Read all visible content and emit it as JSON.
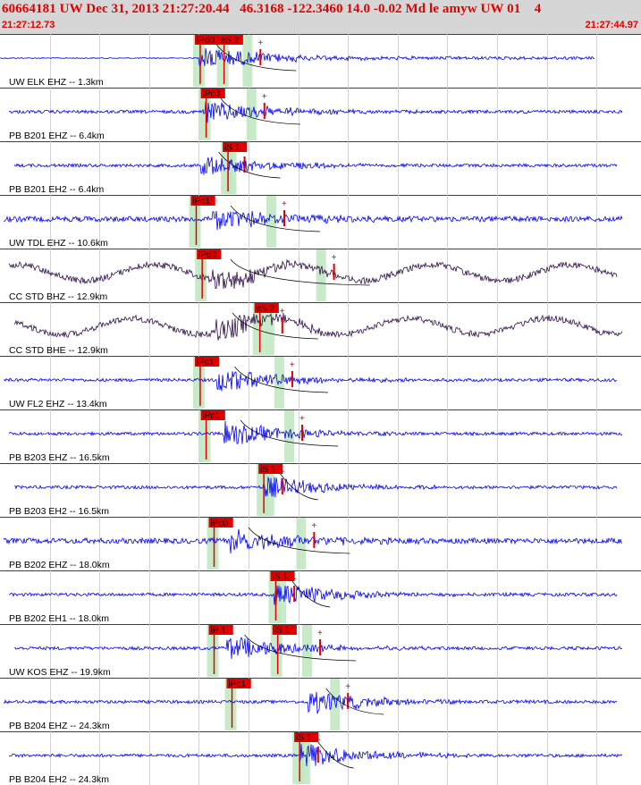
{
  "header": {
    "title": "60664181 UW Dec 31, 2013 21:27:20.44   46.3168 -122.3460 14.0 -0.02 Md le amyw UW 01    4",
    "start_time": "21:27:12.73",
    "end_time": "21:27:44.97"
  },
  "colors": {
    "trace_blue": "#0000ee",
    "trace_dark": "#30104a",
    "pick_red": "#e00000",
    "window_green": "#bfe6bf",
    "header_gray": "#d6d6d6",
    "grid_gray": "#c8c8c8"
  },
  "chart_data": {
    "type": "line",
    "title": "60664181 UW Dec 31, 2013 21:27:20.44   46.3168 -122.3460 14.0 -0.02 Md le amyw UW 01    4",
    "xlabel": "",
    "ylabel": "",
    "time_range": [
      "21:27:12.73",
      "21:27:44.97"
    ],
    "x_unit": "seconds after 21:27:12.73",
    "xlim": [
      0,
      32.24
    ],
    "grid": "vertical lines",
    "channels": [
      {
        "label": "UW ELK EHZ -- 1.3km",
        "color": "blue",
        "amplitude": 1.0,
        "picks": [
          {
            "label": "iPd0",
            "t": 9.8
          },
          {
            "label": "eS 2",
            "t": 11.0
          }
        ],
        "event_onset": 10.0,
        "coda_peak": 13.1
      },
      {
        "label": "PB B201 EHZ -- 6.4km",
        "color": "blue",
        "amplitude": 1.0,
        "picks": [
          {
            "label": "iPc0",
            "t": 10.1
          }
        ],
        "event_onset": 10.2,
        "coda_peak": 13.3
      },
      {
        "label": "PB B201 EH2 -- 6.4km",
        "color": "blue",
        "amplitude": 0.9,
        "picks": [
          {
            "label": "iS 1",
            "t": 11.2
          }
        ],
        "event_onset": 10.1,
        "coda_peak": 12.3
      },
      {
        "label": "UW TDL EHZ -- 10.6km",
        "color": "blue",
        "amplitude": 1.0,
        "picks": [
          {
            "label": "iPc1",
            "t": 9.6
          }
        ],
        "event_onset": 10.7,
        "coda_peak": 14.3
      },
      {
        "label": "CC STD BHZ -- 12.9km",
        "color": "dark",
        "amplitude": 1.0,
        "picks": [
          {
            "label": "iPd0",
            "t": 9.9
          }
        ],
        "event_onset": 10.7,
        "coda_peak": 16.8
      },
      {
        "label": "CC STD BHE -- 12.9km",
        "color": "dark",
        "amplitude": 1.0,
        "picks": [
          {
            "label": "eS 2",
            "t": 12.8
          }
        ],
        "event_onset": 10.8,
        "coda_peak": 14.2
      },
      {
        "label": "UW FL2 EHZ -- 13.4km",
        "color": "blue",
        "amplitude": 1.0,
        "picks": [
          {
            "label": "iPc1",
            "t": 9.8
          }
        ],
        "event_onset": 10.9,
        "coda_peak": 14.7
      },
      {
        "label": "PB B203 EHZ -- 16.5km",
        "color": "blue",
        "amplitude": 1.0,
        "picks": [
          {
            "label": "iPc1",
            "t": 10.1
          }
        ],
        "event_onset": 11.2,
        "coda_peak": 15.2
      },
      {
        "label": "PB B203 EH2 -- 16.5km",
        "color": "blue",
        "amplitude": 0.9,
        "picks": [
          {
            "label": "iS 1",
            "t": 13.0
          }
        ],
        "event_onset": 13.2,
        "coda_peak": 14.2
      },
      {
        "label": "PB B202 EHZ -- 18.0km",
        "color": "blue",
        "amplitude": 1.0,
        "picks": [
          {
            "label": "iPc0",
            "t": 10.5
          }
        ],
        "event_onset": 11.6,
        "coda_peak": 15.8
      },
      {
        "label": "PB B202 EH1 -- 18.0km",
        "color": "blue",
        "amplitude": 1.0,
        "picks": [
          {
            "label": "iS 1",
            "t": 13.6
          }
        ],
        "event_onset": 13.8,
        "coda_peak": 14.8
      },
      {
        "label": "UW KOS EHZ -- 19.9km",
        "color": "blue",
        "amplitude": 1.0,
        "picks": [
          {
            "label": "iP 1",
            "t": 10.5
          },
          {
            "label": "iS 1",
            "t": 13.7
          }
        ],
        "event_onset": 11.4,
        "coda_peak": 16.1
      },
      {
        "label": "PB B204 EHZ -- 24.3km",
        "color": "blue",
        "amplitude": 1.0,
        "picks": [
          {
            "label": "iPc1",
            "t": 11.4
          }
        ],
        "event_onset": 15.5,
        "coda_peak": 17.5
      },
      {
        "label": "PB B204 EH2 -- 24.3km",
        "color": "blue",
        "amplitude": 1.0,
        "picks": [
          {
            "label": "iS 1",
            "t": 14.8
          }
        ],
        "event_onset": 15.1,
        "coda_peak": 16.0
      }
    ]
  }
}
